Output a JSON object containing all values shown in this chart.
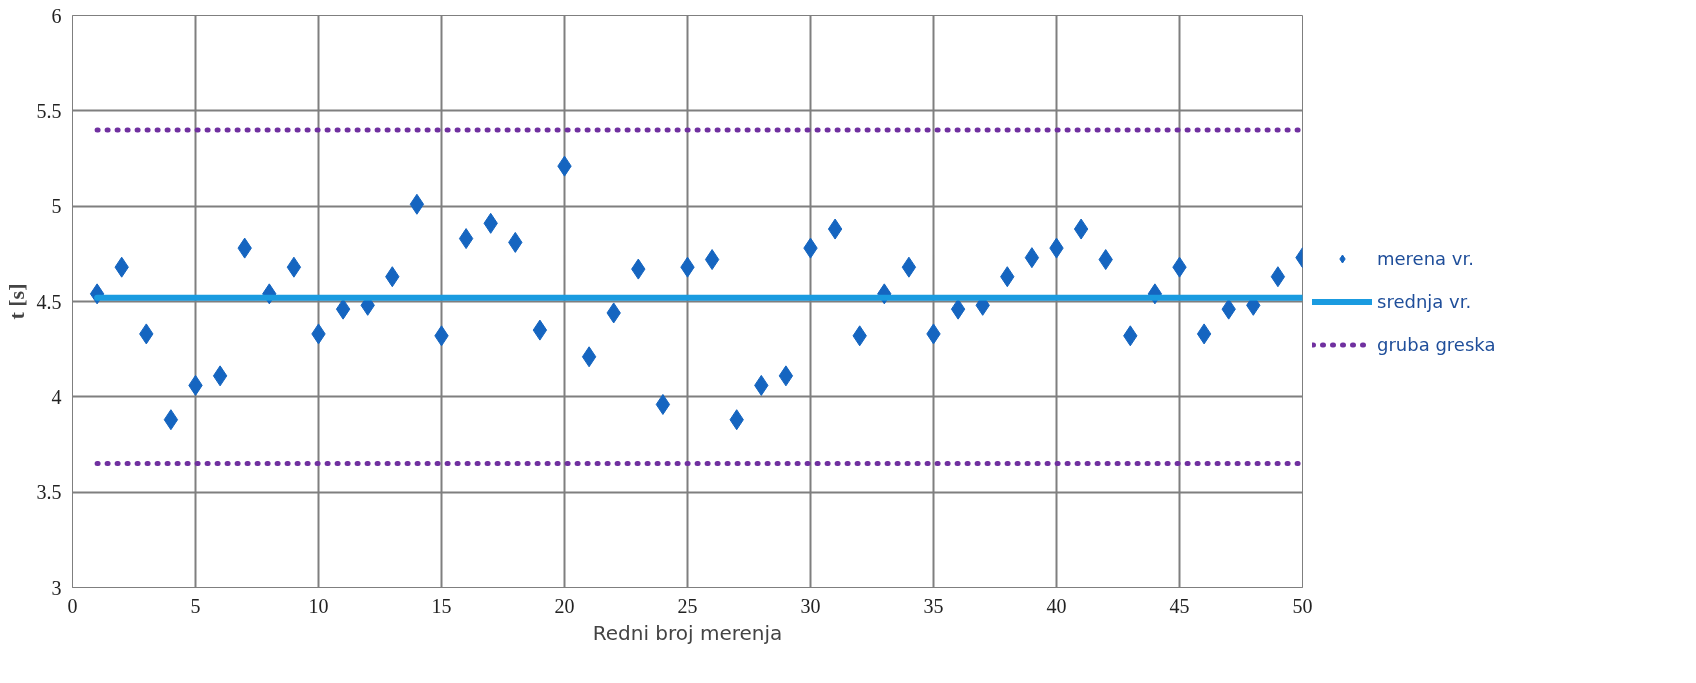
{
  "chart_data": {
    "type": "scatter",
    "xlabel": "Redni broj merenja",
    "ylabel": "t [s]",
    "xlim": [
      0,
      50
    ],
    "ylim": [
      3,
      6
    ],
    "xticks": [
      0,
      5,
      10,
      15,
      20,
      25,
      30,
      35,
      40,
      45,
      50
    ],
    "yticks": [
      3,
      3.5,
      4,
      4.5,
      5,
      5.5,
      6
    ],
    "grid": true,
    "legend": "right",
    "x": [
      1,
      2,
      3,
      4,
      5,
      6,
      7,
      8,
      9,
      10,
      11,
      12,
      13,
      14,
      15,
      16,
      17,
      18,
      19,
      20,
      21,
      22,
      23,
      24,
      25,
      26,
      27,
      28,
      29,
      30,
      31,
      32,
      33,
      34,
      35,
      36,
      37,
      38,
      39,
      40,
      41,
      42,
      43,
      44,
      45,
      46,
      47,
      48,
      49,
      50
    ],
    "series": [
      {
        "name": "merena vr.",
        "marker": "diamond",
        "color": "#1565c0",
        "values": [
          4.54,
          4.68,
          4.33,
          3.88,
          4.06,
          4.11,
          4.78,
          4.54,
          4.68,
          4.33,
          4.46,
          4.48,
          4.63,
          5.01,
          4.32,
          4.83,
          4.91,
          4.81,
          4.35,
          5.21,
          4.21,
          4.44,
          4.67,
          3.96,
          4.68,
          4.72,
          3.88,
          4.06,
          4.11,
          4.78,
          4.88,
          4.32,
          4.54,
          4.68,
          4.33,
          4.46,
          4.48,
          4.63,
          4.73,
          4.78,
          4.88,
          4.72,
          4.32,
          4.54,
          4.68,
          4.33,
          4.46,
          4.48,
          4.63,
          4.73
        ]
      },
      {
        "name": "srednja vr.",
        "type": "line",
        "line_style": "solid",
        "marker": "none",
        "color": "#1a9be0",
        "values": [
          4.52,
          4.52,
          4.52,
          4.52,
          4.52,
          4.52,
          4.52,
          4.52,
          4.52,
          4.52,
          4.52,
          4.52,
          4.52,
          4.52,
          4.52,
          4.52,
          4.52,
          4.52,
          4.52,
          4.52,
          4.52,
          4.52,
          4.52,
          4.52,
          4.52,
          4.52,
          4.52,
          4.52,
          4.52,
          4.52,
          4.52,
          4.52,
          4.52,
          4.52,
          4.52,
          4.52,
          4.52,
          4.52,
          4.52,
          4.52,
          4.52,
          4.52,
          4.52,
          4.52,
          4.52,
          4.52,
          4.52,
          4.52,
          4.52,
          4.52
        ]
      },
      {
        "name": "gruba greska",
        "type": "line",
        "line_style": "dotted",
        "marker": "none",
        "color": "#7030a0",
        "values": [
          5.4,
          5.4,
          5.4,
          5.4,
          5.4,
          5.4,
          5.4,
          5.4,
          5.4,
          5.4,
          5.4,
          5.4,
          5.4,
          5.4,
          5.4,
          5.4,
          5.4,
          5.4,
          5.4,
          5.4,
          5.4,
          5.4,
          5.4,
          5.4,
          5.4,
          5.4,
          5.4,
          5.4,
          5.4,
          5.4,
          5.4,
          5.4,
          5.4,
          5.4,
          5.4,
          5.4,
          5.4,
          5.4,
          5.4,
          5.4,
          5.4,
          5.4,
          5.4,
          5.4,
          5.4,
          5.4,
          5.4,
          5.4,
          5.4,
          5.4
        ]
      },
      {
        "type": "line",
        "line_style": "dotted",
        "marker": "none",
        "color": "#7030a0",
        "values": [
          3.65,
          3.65,
          3.65,
          3.65,
          3.65,
          3.65,
          3.65,
          3.65,
          3.65,
          3.65,
          3.65,
          3.65,
          3.65,
          3.65,
          3.65,
          3.65,
          3.65,
          3.65,
          3.65,
          3.65,
          3.65,
          3.65,
          3.65,
          3.65,
          3.65,
          3.65,
          3.65,
          3.65,
          3.65,
          3.65,
          3.65,
          3.65,
          3.65,
          3.65,
          3.65,
          3.65,
          3.65,
          3.65,
          3.65,
          3.65,
          3.65,
          3.65,
          3.65,
          3.65,
          3.65,
          3.65,
          3.65,
          3.65,
          3.65,
          3.65
        ]
      }
    ]
  }
}
